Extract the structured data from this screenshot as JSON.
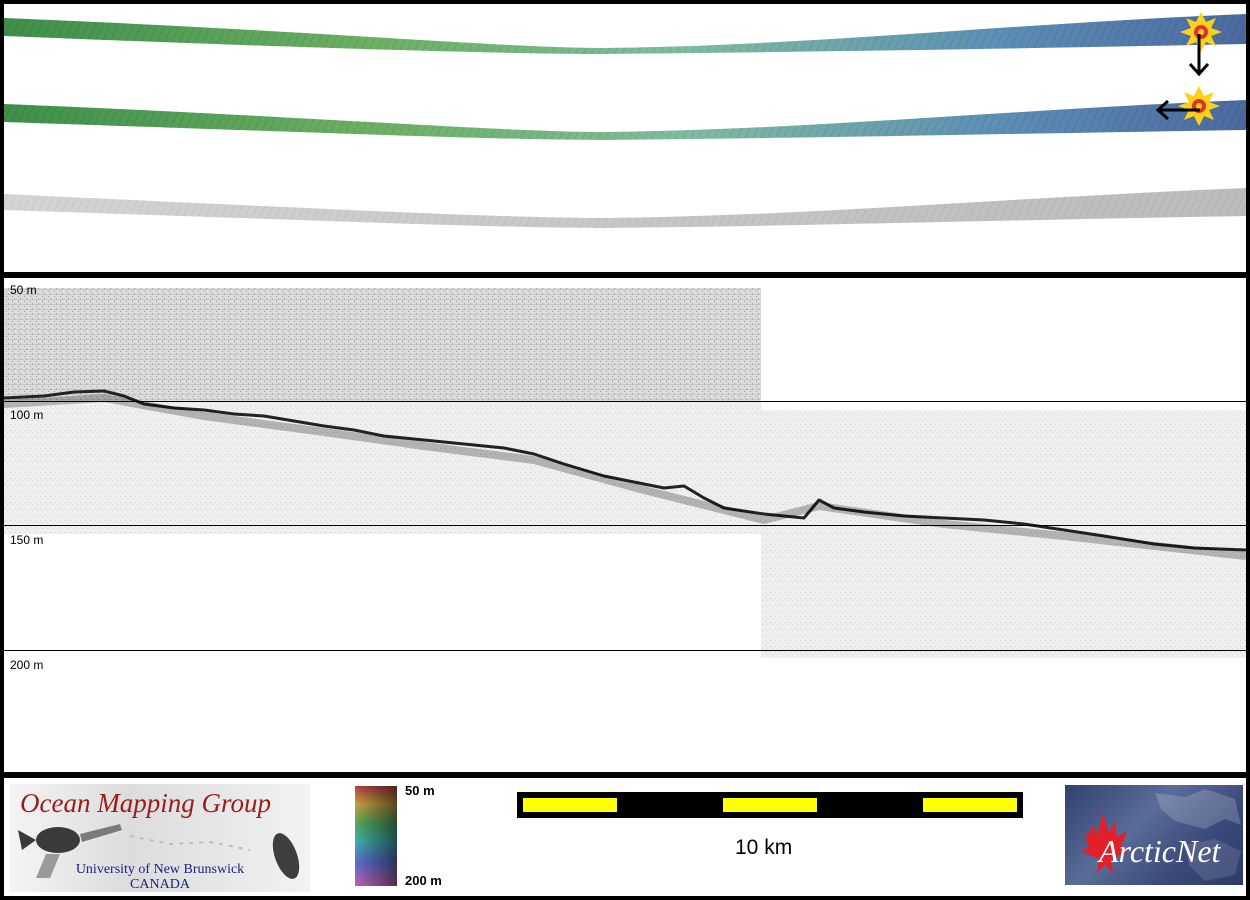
{
  "profile": {
    "depth_labels": [
      "50 m",
      "100 m",
      "150 m",
      "200 m"
    ]
  },
  "footer": {
    "ocean_logo": {
      "title": "Ocean Mapping Group",
      "university": "University of New Brunswick",
      "country": "CANADA"
    },
    "colorbar": {
      "top_label": "50 m",
      "bottom_label": "200 m"
    },
    "scale": {
      "label": "10 km"
    },
    "arctic_logo": {
      "text": "ArcticNet"
    }
  },
  "colors": {
    "swath_green": "#5da35a",
    "swath_blue": "#4a6f9e",
    "scale_yellow": "#ffff00",
    "logo_red": "#9b1c1c",
    "logo_navy": "#1a237e"
  }
}
